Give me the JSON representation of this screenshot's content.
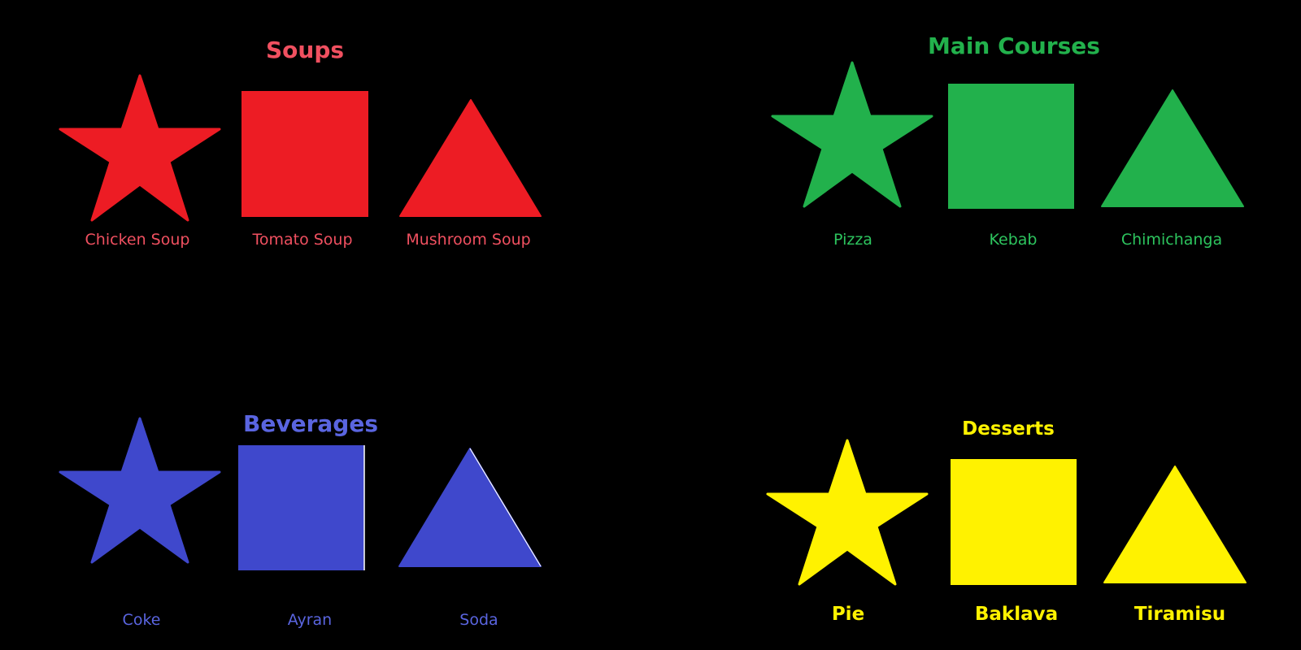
{
  "groups": {
    "soups": {
      "title": "Soups",
      "color": "#ed1c24",
      "items": [
        {
          "label": "Chicken Soup",
          "icon": "star-icon"
        },
        {
          "label": "Tomato Soup",
          "icon": "square-icon"
        },
        {
          "label": "Mushroom Soup",
          "icon": "triangle-icon"
        }
      ]
    },
    "main_courses": {
      "title": "Main Courses",
      "color": "#22b14c",
      "items": [
        {
          "label": "Pizza",
          "icon": "star-icon"
        },
        {
          "label": "Kebab",
          "icon": "square-icon"
        },
        {
          "label": "Chimichanga",
          "icon": "triangle-icon"
        }
      ]
    },
    "beverages": {
      "title": "Beverages",
      "color": "#3f48cc",
      "items": [
        {
          "label": "Coke",
          "icon": "star-icon"
        },
        {
          "label": "Ayran",
          "icon": "square-icon"
        },
        {
          "label": "Soda",
          "icon": "triangle-icon"
        }
      ]
    },
    "desserts": {
      "title": "Desserts",
      "color": "#fff200",
      "items": [
        {
          "label": "Pie",
          "icon": "star-icon"
        },
        {
          "label": "Baklava",
          "icon": "square-icon"
        },
        {
          "label": "Tiramisu",
          "icon": "triangle-icon"
        }
      ]
    }
  }
}
